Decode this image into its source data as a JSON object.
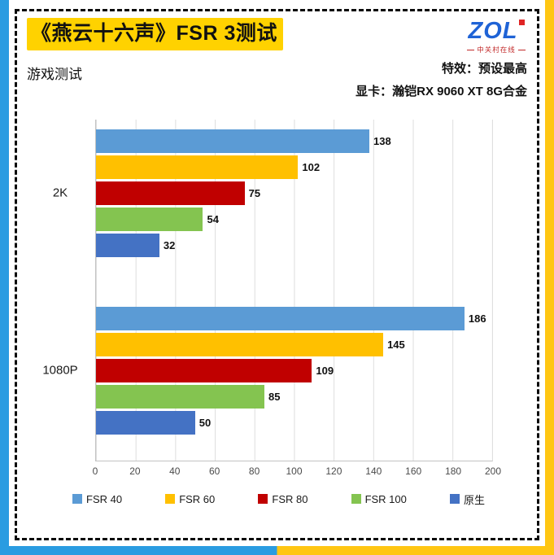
{
  "frame": {
    "blue": "#2a9ce1",
    "yellow": "#ffc613",
    "dash_color": "#0a0a0a"
  },
  "header": {
    "title": "《燕云十六声》FSR 3测试",
    "highlight_color": "#ffd200",
    "logo": {
      "text": "ZOL",
      "sub": "中关村在线",
      "brand_blue": "#1f63d6",
      "brand_red": "#e02424"
    }
  },
  "subheader": {
    "left": "游戏测试",
    "right_line1": "特效：预设最高",
    "right_line2": "显卡：瀚铠RX 9060 XT 8G合金"
  },
  "chart_data": {
    "type": "bar",
    "orientation": "horizontal",
    "title": "《燕云十六声》FSR 3测试",
    "categories": [
      "2K",
      "1080P"
    ],
    "series": [
      {
        "name": "FSR 40",
        "color": "#5b9bd5",
        "values": [
          138,
          186
        ]
      },
      {
        "name": "FSR 60",
        "color": "#ffc000",
        "values": [
          102,
          145
        ]
      },
      {
        "name": "FSR 80",
        "color": "#c00000",
        "values": [
          75,
          109
        ]
      },
      {
        "name": "FSR 100",
        "color": "#84c450",
        "values": [
          54,
          85
        ]
      },
      {
        "name": "原生",
        "color": "#4472c4",
        "values": [
          32,
          50
        ]
      }
    ],
    "xlim": [
      0,
      200
    ],
    "xticks": [
      0,
      20,
      40,
      60,
      80,
      100,
      120,
      140,
      160,
      180,
      200
    ],
    "grid": true,
    "legend_position": "bottom",
    "xlabel": "",
    "ylabel": ""
  }
}
